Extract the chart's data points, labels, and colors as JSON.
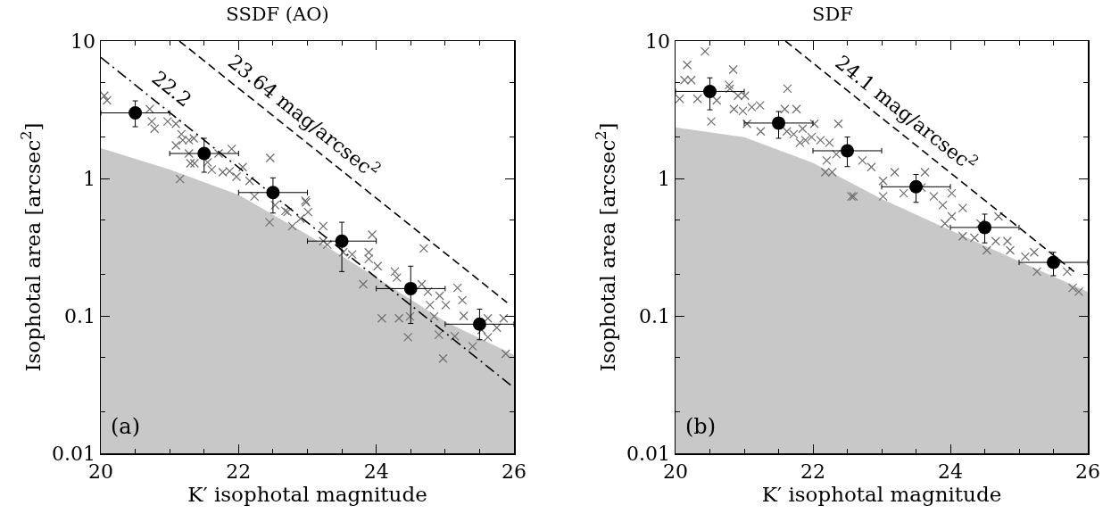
{
  "chart_data": [
    {
      "type": "scatter",
      "title": "SSDF (AO)",
      "xlabel": "K′ isophotal magnitude",
      "ylabel": "Isophotal area [arcsec$^{2}$]",
      "xlim": [
        20,
        26
      ],
      "ylim": [
        0.01,
        10
      ],
      "xticks": [
        20,
        22,
        24,
        26
      ],
      "yticks": [
        0.01,
        0.1,
        1,
        10
      ],
      "log": "y",
      "grid": false,
      "series": [
        {
          "type": "area",
          "color": "#c8c8c8",
          "x": [
            20,
            21,
            22,
            23,
            24,
            25,
            26
          ],
          "values": [
            1.66,
            1.16,
            0.76,
            0.39,
            0.19,
            0.091,
            0.052
          ]
        },
        {
          "type": "scatter",
          "marker": "cross",
          "color": "#6e6e6e",
          "x": [
            20.05,
            20.09,
            20.71,
            20.74,
            20.78,
            20.97,
            21.09,
            21.17,
            21.19,
            21.09,
            21.28,
            21.35,
            21.28,
            21.3,
            21.36,
            21.55,
            21.61,
            21.71,
            21.9,
            21.77,
            21.87,
            21.97,
            22.06,
            22.16,
            21.15,
            22.46,
            22.23,
            22.53,
            22.71,
            22.98,
            23.01,
            22.78,
            22.45,
            22.9,
            22.97,
            22.68,
            23.23,
            23.23,
            23.29,
            23.52,
            23.65,
            23.89,
            23.94,
            23.89,
            24.02,
            23.81,
            24.27,
            24.3,
            24.66,
            24.69,
            24.75,
            24.92,
            25.01,
            25.18,
            25.25,
            24.08,
            24.33,
            24.49,
            24.46,
            24.78,
            24.84,
            24.91,
            24.97,
            25.14,
            25.27,
            25.4,
            25.62,
            25.75,
            25.62,
            25.85,
            25.88,
            25.53
          ],
          "values": [
            4.0,
            3.7,
            3.2,
            2.6,
            2.3,
            2.6,
            2.5,
            2.1,
            1.9,
            1.74,
            1.9,
            1.96,
            1.52,
            1.29,
            1.29,
            1.31,
            1.16,
            1.52,
            1.64,
            1.11,
            1.13,
            1.03,
            1.21,
            0.96,
            0.99,
            1.41,
            0.74,
            0.64,
            0.57,
            0.67,
            0.57,
            0.45,
            0.48,
            0.51,
            0.69,
            0.58,
            0.45,
            0.35,
            0.33,
            0.29,
            0.28,
            0.29,
            0.39,
            0.26,
            0.23,
            0.17,
            0.21,
            0.19,
            0.17,
            0.31,
            0.15,
            0.14,
            0.12,
            0.16,
            0.13,
            0.096,
            0.096,
            0.099,
            0.07,
            0.12,
            0.099,
            0.073,
            0.049,
            0.071,
            0.1,
            0.06,
            0.096,
            0.082,
            0.07,
            0.096,
            0.053,
            0.079
          ]
        },
        {
          "type": "scatter",
          "marker": "circle",
          "color": "#000000",
          "x": [
            20.5,
            21.5,
            22.5,
            23.5,
            24.5,
            25.5
          ],
          "values": [
            3.0,
            1.52,
            0.79,
            0.35,
            0.158,
            0.087
          ],
          "errors": [
            [
              2.38,
              3.67
            ],
            [
              1.11,
              1.96
            ],
            [
              0.56,
              1.01
            ],
            [
              0.21,
              0.48
            ],
            [
              0.088,
              0.23
            ],
            [
              0.067,
              0.112
            ]
          ],
          "xerrors": [
            0.5,
            0.5,
            0.5,
            0.5,
            0.5,
            0.5
          ]
        },
        {
          "type": "line",
          "line_style": "dashdot",
          "marker": "none",
          "color": "#000000",
          "x": [
            20,
            26
          ],
          "values": [
            7.6,
            0.03
          ]
        },
        {
          "type": "line",
          "line_style": "dashed",
          "marker": "none",
          "color": "#000000",
          "x": [
            21.14,
            25.9
          ],
          "values": [
            10,
            0.125
          ]
        }
      ],
      "annotations": [
        "22.2",
        "23.64 mag/arcsec$^{2}$",
        "(a)"
      ]
    },
    {
      "type": "scatter",
      "title": "SDF",
      "xlabel": "K′ isophotal magnitude",
      "ylabel": "Isophotal area [arcsec$^{2}$]",
      "xlim": [
        20,
        26
      ],
      "ylim": [
        0.01,
        10
      ],
      "xticks": [
        20,
        22,
        24,
        26
      ],
      "yticks": [
        0.01,
        0.1,
        1,
        10
      ],
      "log": "y",
      "grid": false,
      "series": [
        {
          "type": "area",
          "color": "#c8c8c8",
          "x": [
            20,
            21,
            22,
            23,
            24,
            25,
            26
          ],
          "values": [
            2.35,
            2.0,
            1.3,
            0.71,
            0.42,
            0.25,
            0.15
          ]
        },
        {
          "type": "scatter",
          "marker": "cross",
          "color": "#6e6e6e",
          "x": [
            20.43,
            20.17,
            20.84,
            20.13,
            20.23,
            20.06,
            20.32,
            20.78,
            20.79,
            20.6,
            20.91,
            21.01,
            20.52,
            21.63,
            20.85,
            20.98,
            21.11,
            21.23,
            21.04,
            21.24,
            21.59,
            21.76,
            21.62,
            21.72,
            21.81,
            21.85,
            22.02,
            21.89,
            22.11,
            22.24,
            22.2,
            22.34,
            22.28,
            22.37,
            22.59,
            21.98,
            22.18,
            22.56,
            22.72,
            22.85,
            23.02,
            23.19,
            23.32,
            23.02,
            23.58,
            23.63,
            23.76,
            23.89,
            24.02,
            24.02,
            24.18,
            24.18,
            24.35,
            24.53,
            24.7,
            24.66,
            24.83,
            24.87,
            25.09,
            25.22,
            25.26,
            25.7,
            25.78,
            25.87,
            23.92,
            24.44
          ],
          "values": [
            8.4,
            6.7,
            6.2,
            5.2,
            5.2,
            3.8,
            3.8,
            4.8,
            4.5,
            3.7,
            4.0,
            4.0,
            2.6,
            4.5,
            3.2,
            3.1,
            3.3,
            3.4,
            2.5,
            2.2,
            3.2,
            3.2,
            2.2,
            2.1,
            1.82,
            2.3,
            2.5,
            1.9,
            1.9,
            1.82,
            1.35,
            1.5,
            1.11,
            2.5,
            0.74,
            2.0,
            1.11,
            0.74,
            1.35,
            1.21,
            0.96,
            1.11,
            0.78,
            0.74,
            0.86,
            1.11,
            0.74,
            0.64,
            0.78,
            0.53,
            0.61,
            0.38,
            0.37,
            0.3,
            0.53,
            0.35,
            0.35,
            0.3,
            0.27,
            0.29,
            0.21,
            0.21,
            0.16,
            0.15,
            0.47,
            0.47
          ]
        },
        {
          "type": "scatter",
          "marker": "circle",
          "color": "#000000",
          "x": [
            20.5,
            21.5,
            22.5,
            23.5,
            24.5,
            25.5
          ],
          "values": [
            4.3,
            2.53,
            1.59,
            0.87,
            0.44,
            0.245
          ],
          "errors": [
            [
              3.16,
              5.4
            ],
            [
              1.96,
              3.07
            ],
            [
              1.22,
              2.0
            ],
            [
              0.67,
              1.07
            ],
            [
              0.34,
              0.55
            ],
            [
              0.196,
              0.29
            ]
          ],
          "xerrors": [
            0.5,
            0.5,
            0.5,
            0.5,
            0.5,
            0.5
          ]
        },
        {
          "type": "line",
          "line_style": "dashed",
          "marker": "none",
          "color": "#000000",
          "x": [
            21.6,
            25.8
          ],
          "values": [
            10,
            0.21
          ]
        }
      ],
      "annotations": [
        "24.1 mag/arcsec$^{2}$",
        "(b)"
      ]
    }
  ]
}
